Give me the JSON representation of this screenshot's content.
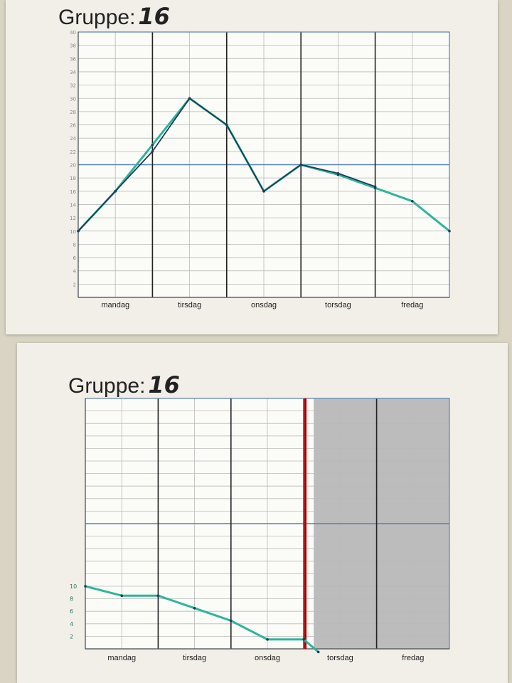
{
  "chart_data": [
    {
      "type": "line",
      "title": "Gruppe:",
      "group_number": "16",
      "categories": [
        "mandag",
        "tirsdag",
        "onsdag",
        "torsdag",
        "fredag"
      ],
      "ylim": [
        0,
        40
      ],
      "y_ticks": [
        "2",
        "4",
        "6",
        "8",
        "10",
        "12",
        "14",
        "16",
        "18",
        "20",
        "22",
        "24",
        "26",
        "28",
        "30",
        "32",
        "34",
        "36",
        "38",
        "40"
      ],
      "x_range": [
        0,
        5
      ],
      "reference_line": 20,
      "grid": true,
      "series": [
        {
          "color": "#2db59a",
          "points": [
            [
              0,
              10
            ],
            [
              0.5,
              16
            ],
            [
              1,
              23
            ],
            [
              1.5,
              30
            ],
            [
              2,
              26
            ],
            [
              2.5,
              16
            ],
            [
              3,
              20
            ],
            [
              3.5,
              18.5
            ],
            [
              4,
              16.5
            ],
            [
              4.5,
              14.5
            ],
            [
              5,
              10
            ]
          ]
        },
        {
          "color": "#1d3c55",
          "points": [
            [
              0,
              10
            ],
            [
              0.5,
              16
            ],
            [
              1,
              22
            ],
            [
              1.5,
              30
            ],
            [
              2,
              26
            ],
            [
              2.5,
              16
            ],
            [
              3,
              20
            ],
            [
              3.5,
              18.7
            ],
            [
              4,
              16.7
            ]
          ]
        }
      ]
    },
    {
      "type": "line",
      "title": "Gruppe:",
      "group_number": "16",
      "categories": [
        "mandag",
        "tirsdag",
        "onsdag",
        "torsdag",
        "fredag"
      ],
      "ylim": [
        0,
        40
      ],
      "y_ticks": [
        "2",
        "4",
        "6",
        "8",
        "10"
      ],
      "x_range": [
        0,
        5
      ],
      "reference_line": 20,
      "current_marker": 3,
      "shaded_from": 3,
      "grid": true,
      "series": [
        {
          "color": "#2db59a",
          "points": [
            [
              0,
              10
            ],
            [
              0.5,
              8.5
            ],
            [
              1,
              8.5
            ],
            [
              1.5,
              6.5
            ],
            [
              2,
              4.5
            ],
            [
              2.5,
              1.5
            ],
            [
              3,
              1.5
            ],
            [
              3.2,
              -0.5
            ]
          ]
        }
      ]
    }
  ],
  "colors": {
    "grid_minor": "#b9b9b9",
    "grid_border": "#5580b5",
    "day_divider": "#222222",
    "marker": "#d11a1a",
    "shade": "#bdbcbc"
  }
}
